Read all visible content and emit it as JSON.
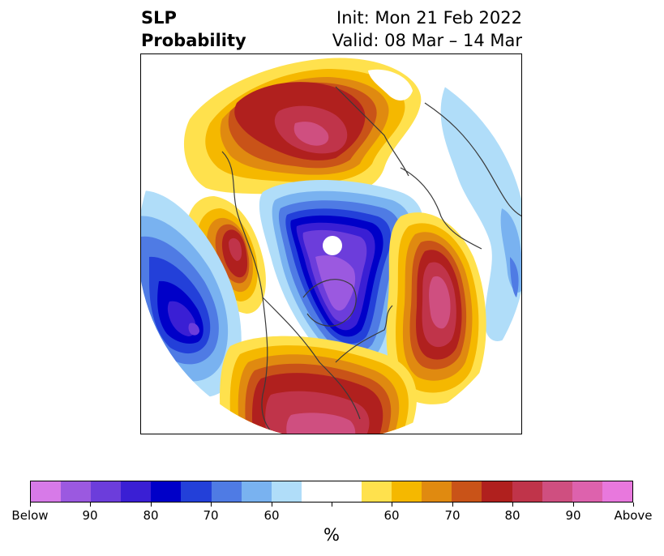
{
  "title": {
    "left_line1": "SLP",
    "left_line2": "Probability",
    "right_line1": "Init: Mon 21 Feb 2022",
    "right_line2": "Valid: 08 Mar – 14 Mar"
  },
  "map": {
    "projection": "north polar stereographic",
    "variable": "SLP",
    "region": "Northern Hemisphere: North America, North Pacific, North Atlantic, Greenland, Europe"
  },
  "colorbar": {
    "unit": "%",
    "colors": [
      "#d77ae8",
      "#9b59e0",
      "#6c3ddb",
      "#3a1fd4",
      "#0000c8",
      "#2340d9",
      "#4f7be4",
      "#79b2f0",
      "#b0ddf9",
      "#ffffff",
      "#ffffff",
      "#ffe14d",
      "#f5b800",
      "#e08a10",
      "#c95318",
      "#b0201e",
      "#c0344a",
      "#cf4f80",
      "#dd62ad",
      "#e878dd"
    ],
    "tick_labels": [
      "Below",
      "90",
      "80",
      "70",
      "60",
      "",
      "60",
      "70",
      "80",
      "90",
      "Above"
    ]
  }
}
